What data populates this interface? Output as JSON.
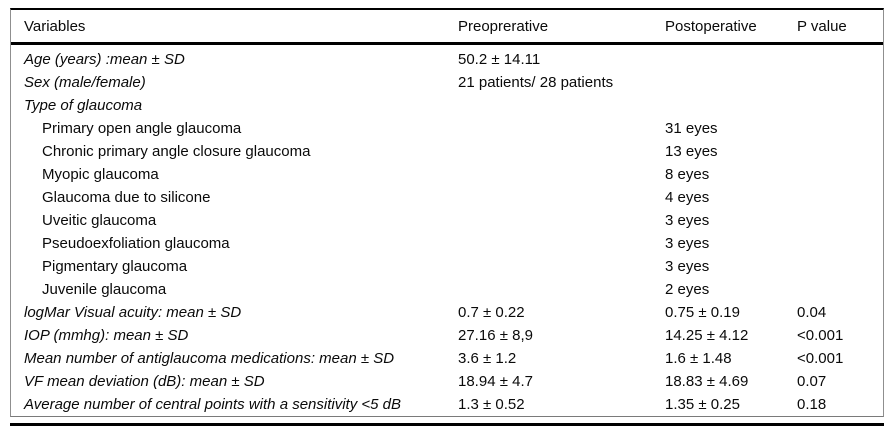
{
  "table": {
    "columns": [
      "Variables",
      "Preoprerative",
      "Postoperative",
      "P value"
    ],
    "rows": [
      {
        "variable": "Age (years) :mean ± SD",
        "italic": true,
        "indent": false,
        "preop": "50.2 ± 14.11",
        "postop": "",
        "p": ""
      },
      {
        "variable": "Sex (male/female)",
        "italic": true,
        "indent": false,
        "preop": "21 patients/ 28 patients",
        "postop": "",
        "p": ""
      },
      {
        "variable": "Type of glaucoma",
        "italic": true,
        "indent": false,
        "preop": "",
        "postop": "",
        "p": ""
      },
      {
        "variable": "Primary open angle glaucoma",
        "italic": false,
        "indent": true,
        "preop": "",
        "postop": "31 eyes",
        "p": ""
      },
      {
        "variable": "Chronic primary angle closure glaucoma",
        "italic": false,
        "indent": true,
        "preop": "",
        "postop": "13 eyes",
        "p": ""
      },
      {
        "variable": "Myopic glaucoma",
        "italic": false,
        "indent": true,
        "preop": "",
        "postop": "8 eyes",
        "p": ""
      },
      {
        "variable": "Glaucoma due to silicone",
        "italic": false,
        "indent": true,
        "preop": "",
        "postop": "4 eyes",
        "p": ""
      },
      {
        "variable": "Uveitic glaucoma",
        "italic": false,
        "indent": true,
        "preop": "",
        "postop": "3 eyes",
        "p": ""
      },
      {
        "variable": "Pseudoexfoliation glaucoma",
        "italic": false,
        "indent": true,
        "preop": "",
        "postop": "3 eyes",
        "p": ""
      },
      {
        "variable": "Pigmentary glaucoma",
        "italic": false,
        "indent": true,
        "preop": "",
        "postop": "3 eyes",
        "p": ""
      },
      {
        "variable": "Juvenile glaucoma",
        "italic": false,
        "indent": true,
        "preop": "",
        "postop": "2 eyes",
        "p": ""
      },
      {
        "variable": "logMar Visual acuity: mean ± SD",
        "italic": true,
        "indent": false,
        "preop": "0.7 ± 0.22",
        "postop": "0.75 ± 0.19",
        "p": "0.04"
      },
      {
        "variable": "IOP (mmhg): mean ± SD",
        "italic": true,
        "indent": false,
        "preop": "27.16 ± 8,9",
        "postop": "14.25 ± 4.12",
        "p": "<0.001"
      },
      {
        "variable": "Mean number of antiglaucoma medications: mean ± SD",
        "italic": true,
        "indent": false,
        "preop": "3.6 ± 1.2",
        "postop": "1.6 ± 1.48",
        "p": "<0.001"
      },
      {
        "variable": "VF mean deviation (dB): mean ± SD",
        "italic": true,
        "indent": false,
        "preop": "18.94 ± 4.7",
        "postop": "18.83 ± 4.69",
        "p": "0.07"
      },
      {
        "variable": "Average number of central points with a sensitivity <5 dB",
        "italic": true,
        "indent": false,
        "preop": "1.3 ± 0.52",
        "postop": "1.35 ± 0.25",
        "p": "0.18"
      }
    ]
  }
}
